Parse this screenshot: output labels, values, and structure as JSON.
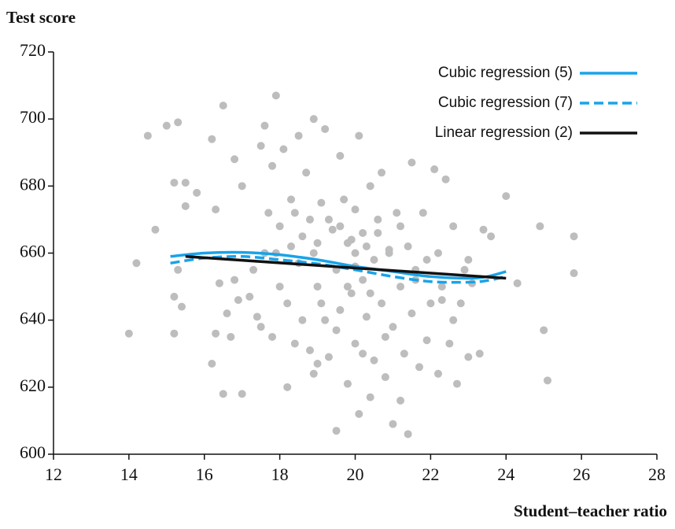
{
  "chart_data": {
    "type": "scatter",
    "y_label": "Test score",
    "x_label": "Student–teacher ratio",
    "xlim": [
      12,
      28
    ],
    "xticks": [
      12,
      14,
      16,
      18,
      20,
      22,
      24,
      26,
      28
    ],
    "ylim": [
      600,
      720
    ],
    "yticks": [
      600,
      620,
      640,
      660,
      680,
      700,
      720
    ],
    "grid": false,
    "legend": "upper right",
    "points": {
      "color": "#bdbdbd",
      "x": [
        14.0,
        14.2,
        14.5,
        14.7,
        15.0,
        15.2,
        15.2,
        15.3,
        15.3,
        15.4,
        15.5,
        15.5,
        15.8,
        15.2,
        16.2,
        16.3,
        16.4,
        16.5,
        16.6,
        16.5,
        16.7,
        16.8,
        16.8,
        16.3,
        16.2,
        17.0,
        17.0,
        17.2,
        17.3,
        17.5,
        17.5,
        17.6,
        17.7,
        17.8,
        17.8,
        17.9,
        18.0,
        18.0,
        18.1,
        18.2,
        18.2,
        18.3,
        18.3,
        18.4,
        18.5,
        18.5,
        18.6,
        18.7,
        18.8,
        18.9,
        18.9,
        19.0,
        19.0,
        19.1,
        19.2,
        19.2,
        19.3,
        19.4,
        19.5,
        19.5,
        19.6,
        19.6,
        19.7,
        19.8,
        19.8,
        19.9,
        20.0,
        20.0,
        20.0,
        20.1,
        20.1,
        20.2,
        20.2,
        20.3,
        20.4,
        20.4,
        20.5,
        20.5,
        20.6,
        20.7,
        20.7,
        20.8,
        20.9,
        21.0,
        21.0,
        21.1,
        21.2,
        21.2,
        21.3,
        21.4,
        21.4,
        21.5,
        21.5,
        21.6,
        21.7,
        21.8,
        21.9,
        22.0,
        22.1,
        22.2,
        22.2,
        22.3,
        22.4,
        22.5,
        22.6,
        22.7,
        22.8,
        22.9,
        23.0,
        23.0,
        23.3,
        23.4,
        23.6,
        24.0,
        24.3,
        24.9,
        25.0,
        25.1,
        25.8,
        25.8,
        18.6,
        18.9,
        19.3,
        19.6,
        19.9,
        20.3,
        20.6,
        20.9,
        21.2,
        19.1,
        19.8,
        20.4,
        18.4,
        17.9,
        21.6,
        22.3,
        17.4,
        19.5,
        20.8,
        20.2,
        18.8,
        21.9,
        19.0,
        20.0,
        17.6,
        22.6,
        16.9,
        23.1
      ],
      "y": [
        636,
        657,
        695,
        667,
        698,
        681,
        636,
        699,
        655,
        644,
        674,
        681,
        678,
        647,
        694,
        673,
        651,
        704,
        642,
        618,
        635,
        688,
        652,
        636,
        627,
        618,
        680,
        647,
        655,
        692,
        638,
        698,
        672,
        635,
        686,
        707,
        668,
        650,
        691,
        620,
        645,
        676,
        662,
        633,
        695,
        657,
        640,
        684,
        670,
        700,
        624,
        650,
        663,
        675,
        640,
        697,
        629,
        667,
        607,
        655,
        689,
        643,
        676,
        663,
        621,
        648,
        660,
        633,
        673,
        612,
        695,
        652,
        666,
        641,
        680,
        617,
        658,
        628,
        670,
        645,
        684,
        623,
        660,
        609,
        638,
        672,
        650,
        616,
        630,
        606,
        662,
        687,
        642,
        655,
        626,
        672,
        634,
        645,
        685,
        660,
        624,
        650,
        682,
        633,
        668,
        621,
        645,
        655,
        629,
        658,
        630,
        667,
        665,
        677,
        651,
        668,
        637,
        622,
        665,
        654,
        665,
        660,
        670,
        668,
        664,
        662,
        666,
        661,
        668,
        645,
        650,
        648,
        672,
        660,
        652,
        646,
        641,
        637,
        635,
        630,
        631,
        658,
        627,
        656,
        660,
        640,
        646,
        651
      ]
    },
    "series": [
      {
        "name": "Cubic regression (5)",
        "color": "#1aa3e8",
        "dash": false,
        "x": [
          15.1,
          16.0,
          17.0,
          18.0,
          19.0,
          20.0,
          21.0,
          22.0,
          23.0,
          23.5,
          24.0
        ],
        "values": [
          659,
          660,
          660.2,
          659.5,
          658,
          656,
          654.5,
          653,
          652.5,
          653,
          654.5
        ]
      },
      {
        "name": "Cubic regression (7)",
        "color": "#1aa3e8",
        "dash": true,
        "x": [
          15.1,
          16.0,
          17.0,
          18.0,
          19.0,
          20.0,
          21.0,
          22.0,
          23.0,
          23.5,
          24.0
        ],
        "values": [
          657,
          658.5,
          659,
          658,
          656.8,
          655,
          653,
          651.5,
          651.3,
          651.8,
          653
        ]
      },
      {
        "name": "Linear regression (2)",
        "color": "#111111",
        "dash": false,
        "x": [
          15.5,
          24.0
        ],
        "values": [
          659,
          652.5
        ]
      }
    ]
  }
}
